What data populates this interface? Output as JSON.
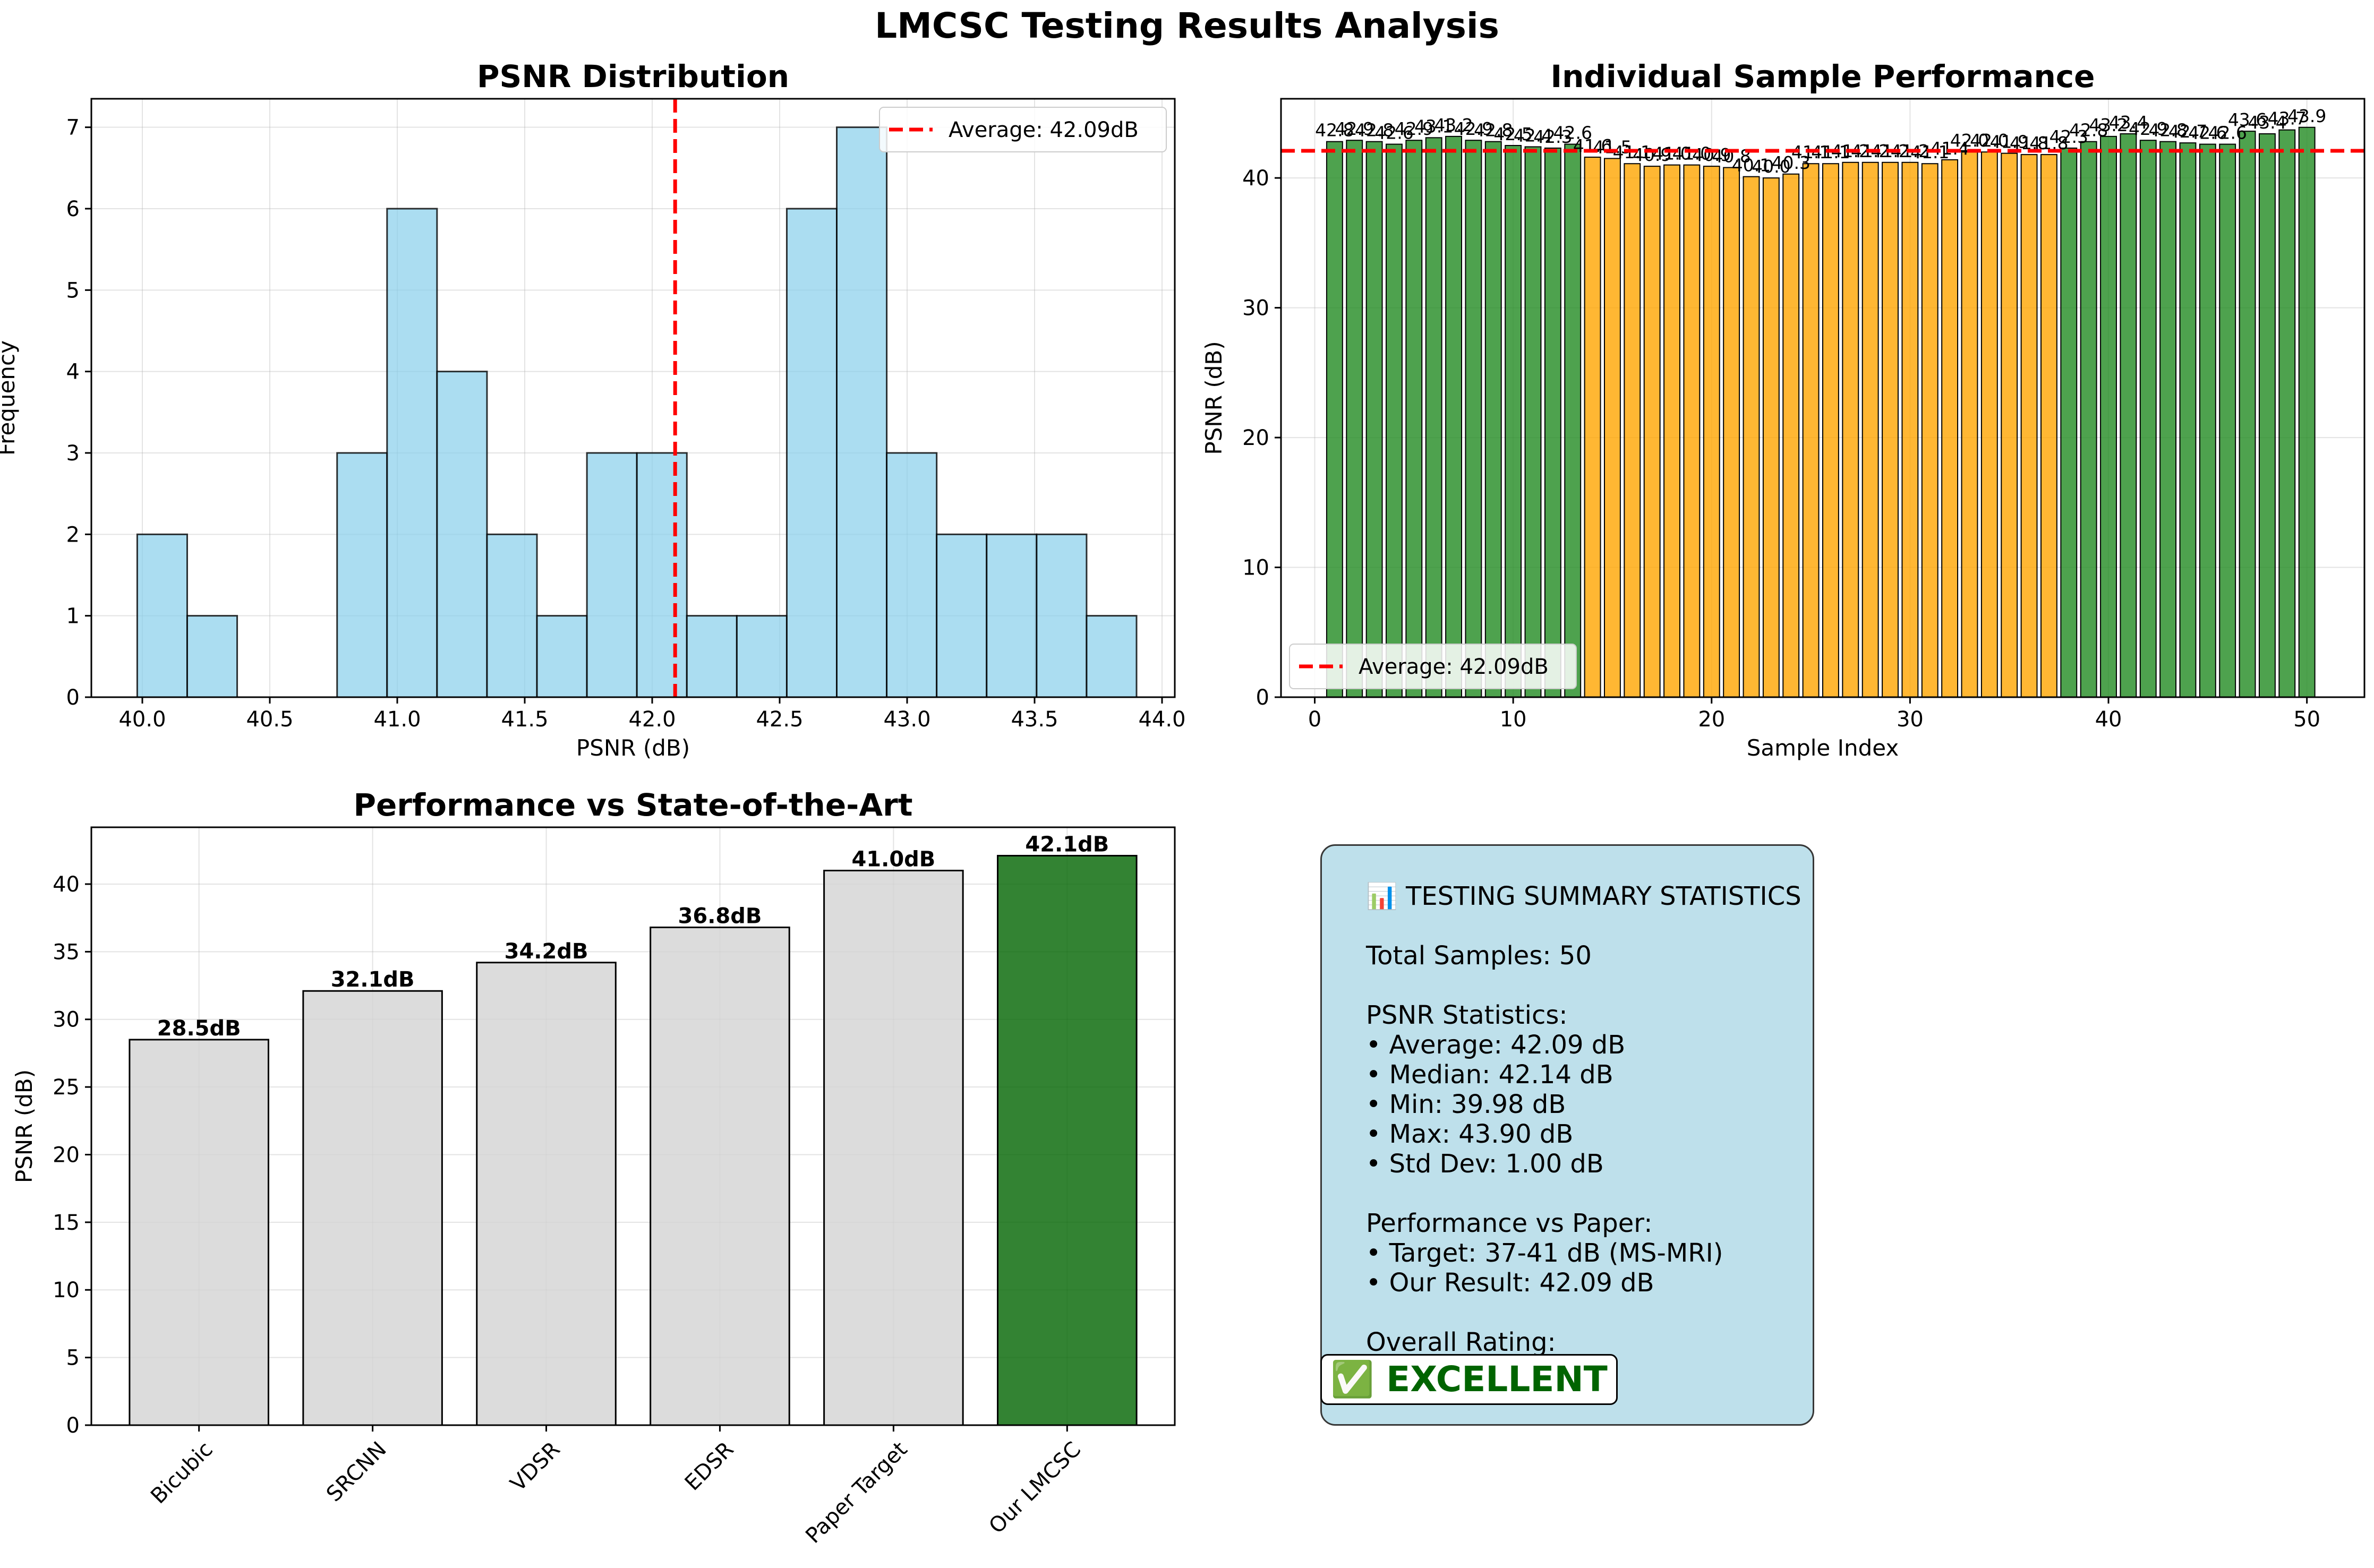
{
  "figure_title": "LMCSC Testing Results Analysis",
  "chart_data": [
    {
      "type": "bar",
      "variant": "histogram",
      "title": "PSNR Distribution",
      "xlabel": "PSNR (dB)",
      "ylabel": "Frequency",
      "xlim": [
        39.8,
        44.05
      ],
      "ylim": [
        0,
        7.35
      ],
      "xticks": [
        40.0,
        40.5,
        41.0,
        41.5,
        42.0,
        42.5,
        43.0,
        43.5,
        44.0
      ],
      "xtick_labels": [
        "40.0",
        "40.5",
        "41.0",
        "41.5",
        "42.0",
        "42.5",
        "43.0",
        "43.5",
        "44.0"
      ],
      "yticks": [
        0,
        1,
        2,
        3,
        4,
        5,
        6,
        7
      ],
      "bin_edges": [
        39.98,
        40.176,
        40.372,
        40.568,
        40.764,
        40.96,
        41.156,
        41.352,
        41.548,
        41.744,
        41.94,
        42.136,
        42.332,
        42.528,
        42.724,
        42.92,
        43.116,
        43.312,
        43.508,
        43.704,
        43.9
      ],
      "counts": [
        2,
        1,
        0,
        0,
        3,
        6,
        4,
        2,
        1,
        3,
        3,
        1,
        1,
        6,
        7,
        3,
        2,
        2,
        2,
        1
      ],
      "bar_color": "#87ceeb",
      "reference_line": {
        "x": 42.09,
        "label": "Average: 42.09dB",
        "color": "#ff0000"
      },
      "legend": {
        "position": "upper right",
        "entries": [
          "Average: 42.09dB"
        ]
      },
      "grid": true
    },
    {
      "type": "bar",
      "title": "Individual Sample Performance",
      "xlabel": "Sample Index",
      "ylabel": "PSNR (dB)",
      "xlim": [
        -1.7,
        52.9
      ],
      "ylim": [
        0,
        46.1
      ],
      "xticks": [
        0,
        10,
        20,
        30,
        40,
        50
      ],
      "yticks": [
        0,
        10,
        20,
        30,
        40
      ],
      "x": [
        1,
        2,
        3,
        4,
        5,
        6,
        7,
        8,
        9,
        10,
        11,
        12,
        13,
        14,
        15,
        16,
        17,
        18,
        19,
        20,
        21,
        22,
        23,
        24,
        25,
        26,
        27,
        28,
        29,
        30,
        31,
        32,
        33,
        34,
        35,
        36,
        37,
        38,
        39,
        40,
        41,
        42,
        43,
        44,
        45,
        46,
        47,
        48,
        49,
        50
      ],
      "values": [
        42.8,
        42.9,
        42.8,
        42.6,
        42.9,
        43.1,
        43.2,
        42.9,
        42.8,
        42.5,
        42.4,
        42.3,
        42.6,
        41.6,
        41.5,
        41.1,
        40.9,
        41.0,
        41.0,
        40.9,
        40.8,
        40.1,
        40.0,
        40.3,
        41.1,
        41.1,
        41.2,
        41.2,
        41.2,
        41.2,
        41.1,
        41.4,
        42.0,
        42.0,
        41.9,
        41.8,
        41.8,
        42.3,
        42.8,
        43.2,
        43.4,
        42.9,
        42.8,
        42.7,
        42.6,
        42.6,
        43.6,
        43.4,
        43.7,
        43.9
      ],
      "value_labels": [
        "42.8",
        "42.9",
        "42.8",
        "42.6",
        "42.9",
        "43.1",
        "43.2",
        "42.9",
        "42.8",
        "42.5",
        "42.4",
        "42.3",
        "42.6",
        "41.6",
        "41.5",
        "41.1",
        "40.9",
        "41.0",
        "41.0",
        "40.9",
        "40.8",
        "40.1",
        "40.0",
        "40.3",
        "41.1",
        "41.1",
        "41.2",
        "41.2",
        "41.2",
        "41.2",
        "41.1",
        "41.4",
        "42.0",
        "42.0",
        "41.9",
        "41.8",
        "41.8",
        "42.3",
        "42.8",
        "43.2",
        "43.4",
        "42.9",
        "42.8",
        "42.7",
        "42.6",
        "42.6",
        "43.6",
        "43.4",
        "43.7",
        "43.9"
      ],
      "colors": {
        "high": "#228b22",
        "low": "#ffa500"
      },
      "color_rule_threshold": 42.09,
      "reference_line": {
        "y": 42.09,
        "label": "Average: 42.09dB",
        "color": "#ff0000"
      },
      "legend": {
        "position": "lower left",
        "entries": [
          "Average: 42.09dB"
        ]
      },
      "grid": true
    },
    {
      "type": "bar",
      "title": "Performance vs State-of-the-Art",
      "xlabel": "",
      "ylabel": "PSNR (dB)",
      "ylim": [
        0,
        44.2
      ],
      "yticks": [
        0,
        5,
        10,
        15,
        20,
        25,
        30,
        35,
        40
      ],
      "categories": [
        "Bicubic",
        "SRCNN",
        "VDSR",
        "EDSR",
        "Paper Target",
        "Our LMCSC"
      ],
      "values": [
        28.5,
        32.1,
        34.2,
        36.8,
        41.0,
        42.1
      ],
      "value_labels": [
        "28.5dB",
        "32.1dB",
        "34.2dB",
        "36.8dB",
        "41.0dB",
        "42.1dB"
      ],
      "colors": [
        "#d3d3d3",
        "#d3d3d3",
        "#d3d3d3",
        "#d3d3d3",
        "#d3d3d3",
        "#006400"
      ],
      "grid": true
    }
  ],
  "summary": {
    "text": "📊 TESTING SUMMARY STATISTICS\n\nTotal Samples: 50\n\nPSNR Statistics:\n• Average: 42.09 dB\n• Median: 42.14 dB\n• Min: 39.98 dB\n• Max: 43.90 dB\n• Std Dev: 1.00 dB\n\nPerformance vs Paper:\n• Target: 37-41 dB (MS-MRI)\n• Our Result: 42.09 dB\n\nOverall Rating:",
    "rating": "✅ EXCELLENT",
    "rating_color": "#006400",
    "box_color": "#add8e6"
  }
}
